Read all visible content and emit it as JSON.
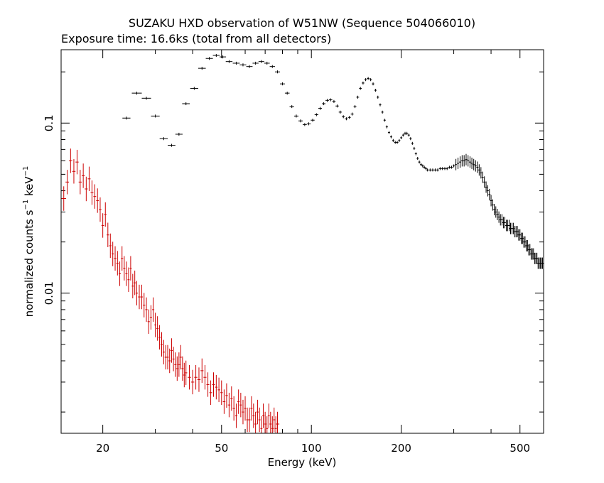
{
  "chart_data": {
    "type": "scatter",
    "title": "SUZAKU HXD observation of W51NW (Sequence 504066010)",
    "subtitle": "Exposure time: 16.6ks (total from all detectors)",
    "xlabel": "Energy (keV)",
    "ylabel_prefix": "normalized counts s",
    "ylabel_mid": " keV",
    "ylabel_sup": "−1",
    "x_scale": "log",
    "y_scale": "log",
    "xlim": [
      14.5,
      600
    ],
    "ylim": [
      0.0015,
      0.27
    ],
    "x_ticks": [
      20,
      50,
      100,
      200,
      500
    ],
    "x_tick_labels": [
      "20",
      "50",
      "100",
      "200",
      "500"
    ],
    "y_ticks": [
      0.01,
      0.1
    ],
    "y_tick_labels": [
      "0.01",
      "0.1"
    ],
    "grid": false,
    "legend": "none",
    "series": [
      {
        "color": "#000000",
        "points": [
          [
            24.0,
            0.107
          ],
          [
            26.0,
            0.15
          ],
          [
            28.0,
            0.14
          ],
          [
            30.0,
            0.11
          ],
          [
            32.0,
            0.081
          ],
          [
            34.0,
            0.074
          ],
          [
            36.0,
            0.086
          ],
          [
            38.0,
            0.13
          ],
          [
            40.5,
            0.16
          ],
          [
            43.0,
            0.21
          ],
          [
            45.5,
            0.24
          ],
          [
            48.0,
            0.25
          ],
          [
            50.5,
            0.245
          ],
          [
            53.0,
            0.23
          ],
          [
            56.0,
            0.225
          ],
          [
            59.0,
            0.22
          ],
          [
            62.0,
            0.215
          ],
          [
            65.0,
            0.225
          ],
          [
            68.0,
            0.23
          ],
          [
            71.0,
            0.225
          ],
          [
            74.0,
            0.215
          ],
          [
            77.0,
            0.2
          ],
          [
            80.0,
            0.17
          ],
          [
            83.0,
            0.15
          ],
          [
            86.0,
            0.125
          ],
          [
            89.0,
            0.11
          ],
          [
            92.0,
            0.103
          ],
          [
            95.0,
            0.098
          ],
          [
            98.0,
            0.099
          ],
          [
            101.0,
            0.104
          ],
          [
            104.0,
            0.112
          ],
          [
            107.0,
            0.122
          ],
          [
            110.0,
            0.13
          ],
          [
            113.0,
            0.136
          ],
          [
            116.0,
            0.137
          ],
          [
            119.0,
            0.134
          ],
          [
            122.0,
            0.126
          ],
          [
            125.0,
            0.116
          ],
          [
            128.0,
            0.109
          ],
          [
            131.0,
            0.106
          ],
          [
            134.0,
            0.108
          ],
          [
            137.0,
            0.113
          ],
          [
            140.0,
            0.125
          ],
          [
            143.0,
            0.142
          ],
          [
            146.0,
            0.16
          ],
          [
            149.0,
            0.172
          ],
          [
            152.0,
            0.18
          ],
          [
            155.0,
            0.183
          ],
          [
            158.0,
            0.18
          ],
          [
            161.0,
            0.17
          ],
          [
            164.0,
            0.156
          ],
          [
            167.0,
            0.142
          ],
          [
            170.0,
            0.128
          ],
          [
            173.0,
            0.116
          ],
          [
            176.0,
            0.104
          ],
          [
            179.0,
            0.095
          ],
          [
            182.0,
            0.088
          ],
          [
            185.0,
            0.083
          ],
          [
            188.0,
            0.079
          ],
          [
            191.0,
            0.077
          ],
          [
            194.0,
            0.077
          ],
          [
            197.0,
            0.079
          ],
          [
            200.0,
            0.082
          ],
          [
            203.0,
            0.085
          ],
          [
            206.0,
            0.087
          ],
          [
            209.0,
            0.087
          ],
          [
            212.0,
            0.085
          ],
          [
            215.0,
            0.081
          ],
          [
            218.0,
            0.076
          ],
          [
            221.0,
            0.071
          ],
          [
            224.0,
            0.066
          ],
          [
            227.0,
            0.062
          ],
          [
            230.0,
            0.059
          ],
          [
            233.0,
            0.057
          ],
          [
            236.0,
            0.056
          ],
          [
            239.0,
            0.055
          ],
          [
            242.0,
            0.054
          ],
          [
            245.0,
            0.053
          ],
          [
            250.0,
            0.053
          ],
          [
            255.0,
            0.053
          ],
          [
            260.0,
            0.053
          ],
          [
            265.0,
            0.053
          ],
          [
            270.0,
            0.054
          ],
          [
            275.0,
            0.054
          ],
          [
            280.0,
            0.054
          ],
          [
            285.0,
            0.054
          ],
          [
            290.0,
            0.055
          ],
          [
            295.0,
            0.055
          ],
          [
            300.0,
            0.056
          ],
          [
            305.0,
            0.057
          ],
          [
            310.0,
            0.058
          ],
          [
            315.0,
            0.059
          ],
          [
            320.0,
            0.06
          ],
          [
            325.0,
            0.06
          ],
          [
            330.0,
            0.061
          ],
          [
            335.0,
            0.06
          ],
          [
            340.0,
            0.059
          ],
          [
            345.0,
            0.058
          ],
          [
            350.0,
            0.057
          ],
          [
            355.0,
            0.056
          ],
          [
            360.0,
            0.055
          ],
          [
            365.0,
            0.053
          ],
          [
            370.0,
            0.051
          ],
          [
            375.0,
            0.048
          ],
          [
            380.0,
            0.045
          ],
          [
            385.0,
            0.042
          ],
          [
            390.0,
            0.04
          ],
          [
            395.0,
            0.038
          ],
          [
            400.0,
            0.035
          ],
          [
            405.0,
            0.033
          ],
          [
            410.0,
            0.031
          ],
          [
            415.0,
            0.03
          ],
          [
            420.0,
            0.029
          ],
          [
            425.0,
            0.028
          ],
          [
            430.0,
            0.027
          ],
          [
            435.0,
            0.027
          ],
          [
            440.0,
            0.026
          ],
          [
            445.0,
            0.026
          ],
          [
            450.0,
            0.025
          ],
          [
            455.0,
            0.025
          ],
          [
            460.0,
            0.025
          ],
          [
            465.0,
            0.024
          ],
          [
            470.0,
            0.024
          ],
          [
            475.0,
            0.024
          ],
          [
            480.0,
            0.023
          ],
          [
            485.0,
            0.023
          ],
          [
            490.0,
            0.023
          ],
          [
            495.0,
            0.022
          ],
          [
            500.0,
            0.022
          ],
          [
            505.0,
            0.021
          ],
          [
            510.0,
            0.021
          ],
          [
            515.0,
            0.02
          ],
          [
            520.0,
            0.02
          ],
          [
            525.0,
            0.019
          ],
          [
            530.0,
            0.019
          ],
          [
            535.0,
            0.018
          ],
          [
            540.0,
            0.018
          ],
          [
            545.0,
            0.017
          ],
          [
            550.0,
            0.017
          ],
          [
            555.0,
            0.017
          ],
          [
            560.0,
            0.016
          ],
          [
            565.0,
            0.016
          ],
          [
            570.0,
            0.016
          ],
          [
            575.0,
            0.015
          ],
          [
            580.0,
            0.015
          ],
          [
            585.0,
            0.015
          ],
          [
            590.0,
            0.015
          ],
          [
            595.0,
            0.015
          ]
        ]
      },
      {
        "color": "#cc0000",
        "points": [
          [
            14.8,
            0.036
          ],
          [
            15.2,
            0.045
          ],
          [
            15.6,
            0.06
          ],
          [
            16.0,
            0.052
          ],
          [
            16.4,
            0.059
          ],
          [
            16.8,
            0.045
          ],
          [
            17.2,
            0.049
          ],
          [
            17.6,
            0.041
          ],
          [
            18.0,
            0.047
          ],
          [
            18.4,
            0.039
          ],
          [
            18.8,
            0.037
          ],
          [
            19.2,
            0.035
          ],
          [
            19.6,
            0.031
          ],
          [
            20.0,
            0.025
          ],
          [
            20.4,
            0.029
          ],
          [
            20.8,
            0.022
          ],
          [
            21.2,
            0.019
          ],
          [
            21.6,
            0.017
          ],
          [
            22.0,
            0.016
          ],
          [
            22.4,
            0.015
          ],
          [
            22.8,
            0.013
          ],
          [
            23.2,
            0.016
          ],
          [
            23.6,
            0.014
          ],
          [
            24.0,
            0.013
          ],
          [
            24.4,
            0.012
          ],
          [
            24.8,
            0.014
          ],
          [
            25.2,
            0.011
          ],
          [
            25.6,
            0.0115
          ],
          [
            26.0,
            0.01
          ],
          [
            26.5,
            0.0095
          ],
          [
            27.0,
            0.0095
          ],
          [
            27.5,
            0.0085
          ],
          [
            28.0,
            0.008
          ],
          [
            28.5,
            0.0068
          ],
          [
            29.0,
            0.0072
          ],
          [
            29.5,
            0.008
          ],
          [
            30.0,
            0.0065
          ],
          [
            30.5,
            0.0062
          ],
          [
            31.0,
            0.0055
          ],
          [
            31.5,
            0.005
          ],
          [
            32.0,
            0.0045
          ],
          [
            32.5,
            0.0042
          ],
          [
            33.0,
            0.0042
          ],
          [
            33.5,
            0.004
          ],
          [
            34.0,
            0.0046
          ],
          [
            34.5,
            0.0041
          ],
          [
            35.0,
            0.0038
          ],
          [
            35.5,
            0.0036
          ],
          [
            36.0,
            0.0038
          ],
          [
            36.5,
            0.0042
          ],
          [
            37.0,
            0.0036
          ],
          [
            37.5,
            0.0033
          ],
          [
            38.0,
            0.0034
          ],
          [
            39.0,
            0.0032
          ],
          [
            40.0,
            0.003
          ],
          [
            41.0,
            0.0032
          ],
          [
            42.0,
            0.0031
          ],
          [
            43.0,
            0.0035
          ],
          [
            44.0,
            0.0032
          ],
          [
            45.0,
            0.0029
          ],
          [
            46.0,
            0.0026
          ],
          [
            47.0,
            0.0029
          ],
          [
            48.0,
            0.0028
          ],
          [
            49.0,
            0.0027
          ],
          [
            50.0,
            0.0026
          ],
          [
            51.0,
            0.0023
          ],
          [
            52.0,
            0.0025
          ],
          [
            53.0,
            0.0022
          ],
          [
            54.0,
            0.0024
          ],
          [
            55.0,
            0.0021
          ],
          [
            56.0,
            0.0019
          ],
          [
            57.0,
            0.0023
          ],
          [
            58.0,
            0.0022
          ],
          [
            59.0,
            0.002
          ],
          [
            60.0,
            0.0021
          ],
          [
            61.0,
            0.0018
          ],
          [
            62.0,
            0.0018
          ],
          [
            63.0,
            0.0021
          ],
          [
            64.0,
            0.0019
          ],
          [
            65.0,
            0.0017
          ],
          [
            66.0,
            0.002
          ],
          [
            67.0,
            0.0018
          ],
          [
            68.0,
            0.0016
          ],
          [
            69.0,
            0.0019
          ],
          [
            70.0,
            0.0017
          ],
          [
            71.0,
            0.0016
          ],
          [
            72.0,
            0.0019
          ],
          [
            73.0,
            0.0017
          ],
          [
            74.0,
            0.0016
          ],
          [
            75.0,
            0.0018
          ],
          [
            76.0,
            0.0016
          ],
          [
            77.0,
            0.0017
          ]
        ]
      }
    ]
  }
}
